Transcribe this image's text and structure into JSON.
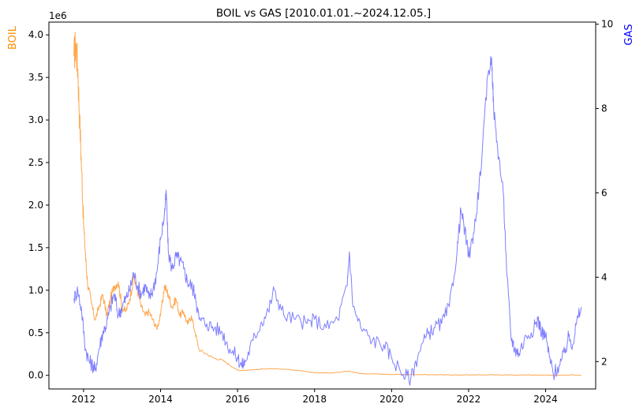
{
  "chart_data": {
    "type": "line",
    "title": "BOIL vs GAS [2010.01.01.~2024.12.05.]",
    "x_ticks": [
      "2012",
      "2014",
      "2016",
      "2018",
      "2020",
      "2022",
      "2024"
    ],
    "x_tick_years": [
      2012,
      2014,
      2016,
      2018,
      2020,
      2022,
      2024
    ],
    "xlim": [
      2011.1,
      2025.3
    ],
    "left_axis": {
      "label": "BOIL",
      "color": "#ff8c00",
      "ylim": [
        -0.16,
        4.15
      ],
      "ticks": [
        0.0,
        0.5,
        1.0,
        1.5,
        2.0,
        2.5,
        3.0,
        3.5,
        4.0
      ],
      "tick_labels": [
        "0.0",
        "0.5",
        "1.0",
        "1.5",
        "2.0",
        "2.5",
        "3.0",
        "3.5",
        "4.0"
      ],
      "offset_text": "1e6"
    },
    "right_axis": {
      "label": "GAS",
      "color": "#0000ff",
      "ylim": [
        1.35,
        10.05
      ],
      "ticks": [
        2,
        4,
        6,
        8,
        10
      ],
      "tick_labels": [
        "2",
        "4",
        "6",
        "8",
        "10"
      ]
    },
    "series": [
      {
        "name": "BOIL",
        "axis": "left",
        "color": "#ffa64d",
        "x": [
          2011.75,
          2011.8,
          2011.85,
          2011.9,
          2011.95,
          2012.0,
          2012.05,
          2012.1,
          2012.2,
          2012.3,
          2012.4,
          2012.5,
          2012.6,
          2012.7,
          2012.8,
          2012.9,
          2013.0,
          2013.1,
          2013.2,
          2013.3,
          2013.4,
          2013.5,
          2013.6,
          2013.7,
          2013.8,
          2013.9,
          2014.0,
          2014.1,
          2014.2,
          2014.3,
          2014.4,
          2014.5,
          2014.6,
          2014.7,
          2014.8,
          2014.9,
          2015.0,
          2015.2,
          2015.4,
          2015.6,
          2015.8,
          2016.0,
          2016.2,
          2016.5,
          2017.0,
          2017.5,
          2018.0,
          2018.5,
          2018.9,
          2019.2,
          2019.6,
          2020.0,
          2020.5,
          2021.0,
          2021.5,
          2022.0,
          2022.5,
          2023.0,
          2023.5,
          2024.0,
          2024.5,
          2024.93
        ],
        "values": [
          3.75,
          3.9,
          3.6,
          3.0,
          2.4,
          1.8,
          1.4,
          1.1,
          0.85,
          0.65,
          0.8,
          0.95,
          0.7,
          0.9,
          1.05,
          1.1,
          0.8,
          0.75,
          0.9,
          1.15,
          1.0,
          0.8,
          0.7,
          0.75,
          0.65,
          0.55,
          0.7,
          1.05,
          0.95,
          0.8,
          0.9,
          0.7,
          0.75,
          0.6,
          0.7,
          0.5,
          0.3,
          0.25,
          0.2,
          0.18,
          0.12,
          0.06,
          0.06,
          0.07,
          0.08,
          0.06,
          0.03,
          0.03,
          0.05,
          0.02,
          0.02,
          0.01,
          0.01,
          0.008,
          0.006,
          0.005,
          0.006,
          0.004,
          0.004,
          0.003,
          0.003,
          0.003
        ]
      },
      {
        "name": "GAS",
        "axis": "right",
        "color": "#7f7fff",
        "x": [
          2011.75,
          2011.85,
          2011.95,
          2012.05,
          2012.15,
          2012.25,
          2012.3,
          2012.4,
          2012.5,
          2012.6,
          2012.7,
          2012.8,
          2012.9,
          2013.0,
          2013.1,
          2013.2,
          2013.3,
          2013.4,
          2013.5,
          2013.6,
          2013.7,
          2013.8,
          2013.9,
          2014.0,
          2014.1,
          2014.15,
          2014.2,
          2014.3,
          2014.4,
          2014.5,
          2014.6,
          2014.7,
          2014.8,
          2014.9,
          2015.0,
          2015.2,
          2015.4,
          2015.6,
          2015.8,
          2016.0,
          2016.1,
          2016.2,
          2016.4,
          2016.6,
          2016.8,
          2016.95,
          2017.2,
          2017.5,
          2017.8,
          2018.0,
          2018.3,
          2018.6,
          2018.85,
          2018.9,
          2019.0,
          2019.2,
          2019.5,
          2019.8,
          2020.0,
          2020.3,
          2020.5,
          2020.7,
          2020.9,
          2021.1,
          2021.3,
          2021.5,
          2021.7,
          2021.8,
          2021.9,
          2022.0,
          2022.1,
          2022.2,
          2022.35,
          2022.5,
          2022.6,
          2022.65,
          2022.75,
          2022.9,
          2023.0,
          2023.1,
          2023.2,
          2023.3,
          2023.5,
          2023.7,
          2023.8,
          2023.9,
          2024.0,
          2024.1,
          2024.2,
          2024.35,
          2024.5,
          2024.6,
          2024.7,
          2024.8,
          2024.93
        ],
        "values": [
          3.5,
          3.7,
          3.2,
          2.3,
          2.0,
          1.9,
          1.8,
          2.3,
          2.7,
          2.9,
          3.3,
          3.6,
          3.1,
          3.3,
          3.5,
          3.7,
          4.1,
          3.8,
          3.6,
          3.8,
          3.5,
          3.7,
          4.1,
          4.9,
          5.5,
          6.0,
          4.6,
          4.2,
          4.5,
          4.4,
          4.2,
          3.9,
          3.8,
          3.6,
          3.0,
          2.9,
          2.8,
          2.7,
          2.3,
          2.1,
          1.9,
          2.0,
          2.5,
          2.9,
          3.2,
          3.7,
          3.1,
          3.0,
          2.9,
          3.0,
          2.8,
          3.0,
          3.8,
          4.6,
          3.3,
          2.8,
          2.5,
          2.4,
          2.1,
          1.7,
          1.6,
          2.2,
          2.6,
          2.8,
          2.9,
          3.3,
          4.6,
          5.6,
          5.1,
          4.5,
          4.9,
          5.5,
          6.9,
          8.8,
          9.2,
          8.0,
          7.1,
          6.0,
          4.0,
          2.6,
          2.3,
          2.2,
          2.6,
          2.8,
          3.0,
          2.7,
          2.6,
          2.1,
          1.7,
          1.9,
          2.2,
          2.6,
          2.4,
          2.9,
          3.3
        ]
      }
    ],
    "grid": false,
    "legend": "none"
  }
}
